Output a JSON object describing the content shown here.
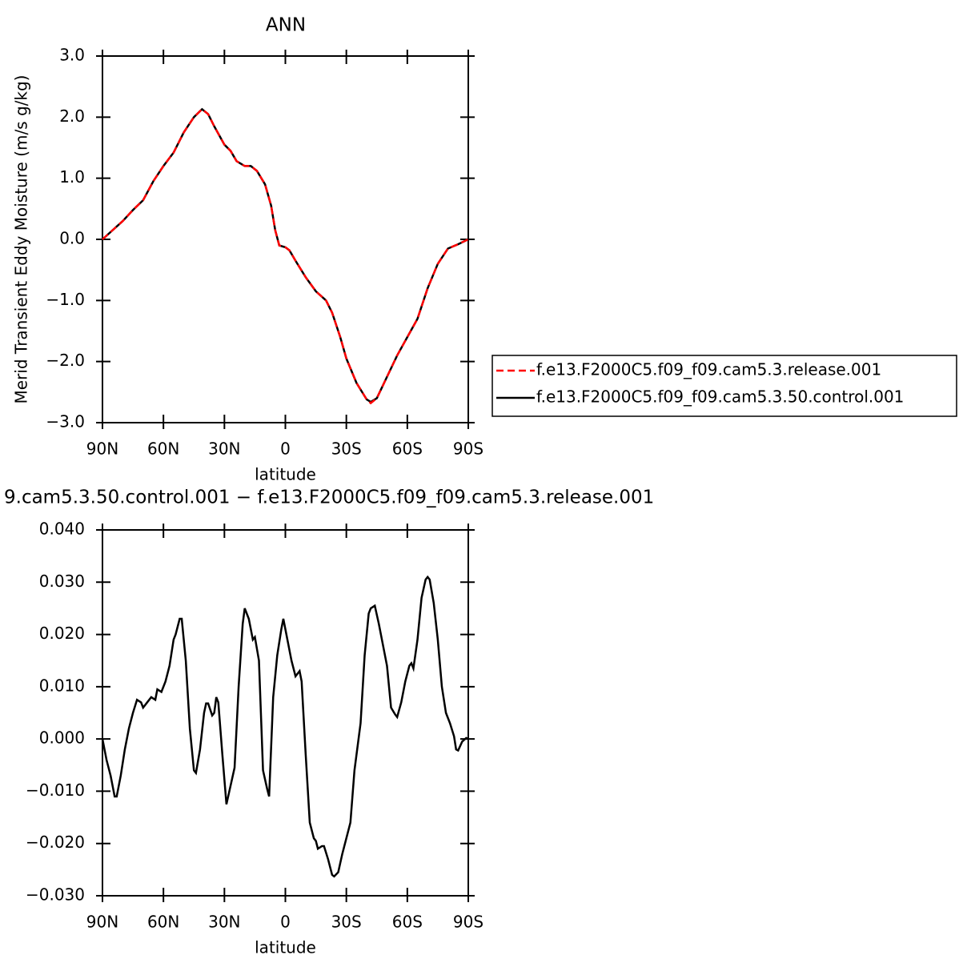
{
  "chart_data": [
    {
      "type": "line",
      "title": "ANN",
      "ylabel": "Merid Transient Eddy Moisture (m/s g/kg)",
      "xlabel": "latitude",
      "xlim": [
        90,
        -90
      ],
      "xticks": [
        {
          "value": 90,
          "label": "90N"
        },
        {
          "value": 60,
          "label": "60N"
        },
        {
          "value": 30,
          "label": "30N"
        },
        0,
        {
          "value": -30,
          "label": "30S"
        },
        {
          "value": -60,
          "label": "60S"
        },
        {
          "value": -90,
          "label": "90S"
        }
      ],
      "ylim": [
        -3,
        3
      ],
      "yticks": [
        {
          "value": 3,
          "label": "3.0"
        },
        {
          "value": 2,
          "label": "2.0"
        },
        {
          "value": 1,
          "label": "1.0"
        },
        {
          "value": 0,
          "label": "0.0"
        },
        {
          "value": -1,
          "label": "−1.0"
        },
        {
          "value": -2,
          "label": "−2.0"
        },
        {
          "value": -3,
          "label": "−3.0"
        }
      ],
      "x": [
        90,
        80,
        75,
        70,
        65,
        60,
        55,
        50,
        45,
        41,
        38,
        35,
        30,
        27,
        24,
        20,
        17,
        14,
        10,
        7,
        5,
        3,
        0,
        -2,
        -5,
        -10,
        -15,
        -20,
        -23,
        -27,
        -30,
        -35,
        -40,
        -42,
        -45,
        -50,
        -55,
        -60,
        -65,
        -70,
        -75,
        -80,
        -85,
        -90
      ],
      "series": [
        {
          "name": "f.e13.F2000C5.f09_f09.cam5.3.release.001",
          "color": "#ff0000",
          "line_style": "dashed",
          "values": [
            0.0,
            0.3,
            0.48,
            0.64,
            0.95,
            1.2,
            1.42,
            1.75,
            2.0,
            2.13,
            2.05,
            1.85,
            1.55,
            1.45,
            1.28,
            1.2,
            1.2,
            1.12,
            0.9,
            0.55,
            0.15,
            -0.1,
            -0.13,
            -0.18,
            -0.35,
            -0.62,
            -0.85,
            -1.0,
            -1.2,
            -1.6,
            -1.95,
            -2.35,
            -2.62,
            -2.68,
            -2.6,
            -2.25,
            -1.9,
            -1.6,
            -1.3,
            -0.8,
            -0.4,
            -0.15,
            -0.08,
            0.0
          ]
        },
        {
          "name": "f.e13.F2000C5.f09_f09.cam5.3.50.control.001",
          "color": "#000000",
          "line_style": "solid",
          "values": [
            0.0,
            0.3,
            0.48,
            0.64,
            0.95,
            1.2,
            1.42,
            1.75,
            2.0,
            2.13,
            2.05,
            1.85,
            1.55,
            1.45,
            1.28,
            1.2,
            1.2,
            1.12,
            0.9,
            0.55,
            0.15,
            -0.1,
            -0.13,
            -0.18,
            -0.35,
            -0.62,
            -0.85,
            -1.0,
            -1.2,
            -1.6,
            -1.95,
            -2.35,
            -2.62,
            -2.66,
            -2.6,
            -2.25,
            -1.9,
            -1.6,
            -1.3,
            -0.8,
            -0.4,
            -0.15,
            -0.08,
            0.0
          ]
        }
      ]
    },
    {
      "type": "line",
      "title": "9.cam5.3.50.control.001 − f.e13.F2000C5.f09_f09.cam5.3.release.001",
      "xlabel": "latitude",
      "xlim": [
        90,
        -90
      ],
      "xticks": [
        {
          "value": 90,
          "label": "90N"
        },
        {
          "value": 60,
          "label": "60N"
        },
        {
          "value": 30,
          "label": "30N"
        },
        0,
        {
          "value": -30,
          "label": "30S"
        },
        {
          "value": -60,
          "label": "60S"
        },
        {
          "value": -90,
          "label": "90S"
        }
      ],
      "ylim": [
        -0.03,
        0.04
      ],
      "yticks": [
        {
          "value": 0.04,
          "label": "0.040"
        },
        {
          "value": 0.03,
          "label": "0.030"
        },
        {
          "value": 0.02,
          "label": "0.020"
        },
        {
          "value": 0.01,
          "label": "0.010"
        },
        {
          "value": 0,
          "label": "0.000"
        },
        {
          "value": -0.01,
          "label": "−0.010"
        },
        {
          "value": -0.02,
          "label": "−0.020"
        },
        {
          "value": -0.03,
          "label": "−0.030"
        }
      ],
      "color": "#000000",
      "x": [
        90,
        88,
        86,
        84,
        83,
        81,
        79,
        77,
        75,
        73,
        71,
        70,
        68,
        66,
        64,
        63,
        61,
        59,
        57,
        55,
        54,
        52,
        51,
        49,
        47,
        45,
        44,
        42,
        40,
        39,
        38,
        36,
        35,
        34,
        33,
        31,
        29,
        27,
        25,
        23,
        21,
        20,
        18,
        16,
        15,
        13,
        11,
        9,
        8,
        6,
        4,
        2,
        1,
        -1,
        -3,
        -5,
        -7,
        -8,
        -10,
        -12,
        -14,
        -15,
        -16,
        -18,
        -19,
        -21,
        -23,
        -24,
        -26,
        -28,
        -30,
        -32,
        -34,
        -37,
        -39,
        -41,
        -42,
        -44,
        -46,
        -48,
        -50,
        -52,
        -54,
        -55,
        -57,
        -59,
        -61,
        -62,
        -63,
        -65,
        -67,
        -69,
        -70,
        -71,
        -73,
        -75,
        -77,
        -79,
        -81,
        -83,
        -84,
        -85,
        -87,
        -89,
        -90
      ],
      "values": [
        0.0,
        -0.004,
        -0.007,
        -0.011,
        -0.011,
        -0.007,
        -0.002,
        0.002,
        0.005,
        0.0075,
        0.007,
        0.006,
        0.007,
        0.008,
        0.0075,
        0.0095,
        0.009,
        0.011,
        0.014,
        0.019,
        0.02,
        0.023,
        0.023,
        0.015,
        0.002,
        -0.006,
        -0.0065,
        -0.002,
        0.005,
        0.0068,
        0.0068,
        0.0045,
        0.005,
        0.008,
        0.007,
        -0.003,
        -0.0125,
        -0.009,
        -0.0055,
        0.01,
        0.022,
        0.025,
        0.023,
        0.019,
        0.0195,
        0.015,
        -0.006,
        -0.0095,
        -0.011,
        0.008,
        0.016,
        0.021,
        0.023,
        0.019,
        0.015,
        0.012,
        0.013,
        0.011,
        -0.003,
        -0.016,
        -0.019,
        -0.0195,
        -0.021,
        -0.0205,
        -0.0205,
        -0.023,
        -0.026,
        -0.0263,
        -0.0255,
        -0.022,
        -0.019,
        -0.016,
        -0.006,
        0.003,
        0.016,
        0.024,
        0.025,
        0.0255,
        0.022,
        0.018,
        0.014,
        0.006,
        0.0047,
        0.0042,
        0.007,
        0.011,
        0.014,
        0.0145,
        0.0135,
        0.019,
        0.027,
        0.0305,
        0.031,
        0.0305,
        0.026,
        0.019,
        0.01,
        0.005,
        0.003,
        0.0005,
        -0.002,
        -0.0022,
        -0.0005,
        0.0002,
        0.0
      ]
    }
  ]
}
